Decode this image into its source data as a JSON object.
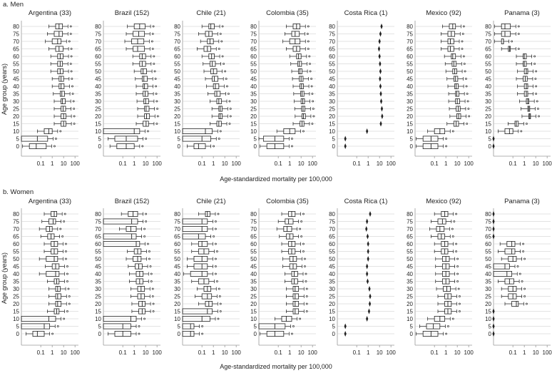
{
  "figure": {
    "xlabel": "Age-standardized mortality per 100,000",
    "ylabel": "Age group (years)"
  },
  "chart_data": {
    "type": "boxplot",
    "x_scale": "log",
    "x_ticks": [
      "0.1",
      "1",
      "10",
      "100"
    ],
    "y_categories": [
      "80",
      "75",
      "70",
      "65",
      "60",
      "55",
      "50",
      "45",
      "40",
      "35",
      "30",
      "25",
      "20",
      "15",
      "10",
      "5",
      "0"
    ],
    "countries": [
      "Argentina (33)",
      "Brazil (152)",
      "Chile (21)",
      "Colombia (35)",
      "Costa Rica (1)",
      "Mexico (92)",
      "Panama (3)"
    ],
    "grid": true,
    "colors": {
      "box_stroke": "#222222",
      "grid": "#c8c8c8",
      "panel_frame": "#9a9a9a"
    },
    "panels": [
      {
        "title": "a. Men",
        "country_series": [
          {
            "name": "Argentina (33)",
            "median": [
              4,
              4,
              3,
              4,
              5,
              5,
              5,
              6,
              6,
              7,
              8,
              9,
              10,
              10,
              0.5,
              0.05,
              0.04
            ],
            "q1": [
              2,
              1.5,
              1,
              2,
              3,
              3,
              3,
              4,
              4,
              5,
              6,
              6,
              6,
              6,
              0.2,
              0.002,
              0.01
            ],
            "q3": [
              8,
              8,
              6,
              9,
              9,
              8,
              9,
              10,
              11,
              12,
              14,
              15,
              16,
              16,
              1,
              0.4,
              0.3
            ]
          },
          {
            "name": "Brazil (152)",
            "median": [
              3,
              2.5,
              2,
              2,
              5,
              5,
              6,
              7,
              8,
              9,
              10,
              11,
              12,
              11,
              1,
              0.2,
              0.2
            ],
            "q1": [
              1,
              0.8,
              0.6,
              0.8,
              3,
              3,
              4,
              5,
              6,
              6,
              7,
              8,
              8,
              6,
              0.002,
              0.02,
              0.03
            ],
            "q3": [
              9,
              8,
              7,
              8,
              10,
              10,
              12,
              14,
              15,
              16,
              18,
              20,
              22,
              18,
              3,
              2,
              1
            ]
          },
          {
            "name": "Chile (21)",
            "median": [
              0.6,
              0.4,
              0.5,
              0.3,
              0.7,
              0.8,
              1,
              1.2,
              1.5,
              2,
              3,
              4,
              4,
              3,
              0.2,
              0.1,
              0.05
            ],
            "q1": [
              0.4,
              0.2,
              0.3,
              0.15,
              0.4,
              0.5,
              0.6,
              0.8,
              1,
              1.3,
              2,
              3,
              3,
              2,
              0.002,
              0.002,
              0.02
            ],
            "q3": [
              1.2,
              0.8,
              1,
              0.6,
              1.2,
              1.5,
              2,
              2.5,
              3,
              4,
              5,
              6,
              6,
              5,
              0.8,
              0.6,
              0.2
            ]
          },
          {
            "name": "Colombia (35)",
            "median": [
              4,
              3,
              3,
              4,
              6,
              7,
              8,
              10,
              11,
              12,
              14,
              15,
              16,
              12,
              1,
              0.05,
              0.05
            ],
            "q1": [
              2,
              1.5,
              1,
              2,
              4,
              5,
              6,
              7,
              8,
              9,
              10,
              11,
              12,
              8,
              0.3,
              0.005,
              0.01
            ],
            "q3": [
              8,
              7,
              8,
              8,
              10,
              11,
              12,
              15,
              16,
              18,
              20,
              22,
              24,
              18,
              3,
              0.3,
              0.3
            ]
          },
          {
            "name": "Costa Rica (1)",
            "median": [
              15,
              12,
              10,
              9,
              10,
              11,
              12,
              11,
              12,
              13,
              14,
              16,
              17,
              13,
              0.8,
              0.01,
              0.01
            ],
            "q1": [
              15,
              12,
              10,
              9,
              10,
              11,
              12,
              11,
              12,
              13,
              14,
              16,
              17,
              13,
              0.8,
              0.01,
              0.01
            ],
            "q3": [
              15,
              12,
              10,
              9,
              10,
              11,
              12,
              11,
              12,
              13,
              14,
              16,
              17,
              13,
              0.8,
              0.01,
              0.01
            ]
          },
          {
            "name": "Mexico (92)",
            "median": [
              4,
              3,
              2.5,
              2.5,
              4,
              5,
              6,
              7,
              8,
              9,
              10,
              12,
              13,
              8,
              0.3,
              0.05,
              0.05
            ],
            "q1": [
              2,
              1.5,
              1.5,
              1.5,
              3,
              3.5,
              4,
              5,
              6,
              7,
              7,
              8,
              9,
              5,
              0.1,
              0.01,
              0.01
            ],
            "q3": [
              7,
              6,
              5,
              5,
              7,
              8,
              9,
              11,
              12,
              14,
              16,
              18,
              20,
              13,
              0.8,
              0.2,
              0.2
            ]
          },
          {
            "name": "Panama (3)",
            "median": [
              0.02,
              0.02,
              0.015,
              0.05,
              1,
              1,
              1.5,
              1.2,
              1.5,
              1.5,
              2,
              2.5,
              3,
              0.2,
              0.05,
              0.002,
              0.002
            ],
            "q1": [
              0.01,
              0.01,
              0.01,
              0.04,
              0.8,
              0.8,
              1,
              0.8,
              1,
              1,
              1.5,
              2,
              2.5,
              0.15,
              0.02,
              0.002,
              0.002
            ],
            "q3": [
              0.06,
              0.06,
              0.015,
              0.06,
              1.5,
              1.5,
              2,
              1.8,
              2,
              2,
              2.5,
              3,
              3.5,
              0.3,
              0.1,
              0.002,
              0.002
            ]
          }
        ]
      },
      {
        "title": "b. Women",
        "country_series": [
          {
            "name": "Argentina (33)",
            "median": [
              1.5,
              1.2,
              0.6,
              0.8,
              1.5,
              1.5,
              1.5,
              2,
              2,
              2.5,
              3,
              3,
              3,
              2.5,
              0.5,
              0.2,
              0.05
            ],
            "q1": [
              0.8,
              0.5,
              0.3,
              0.4,
              0.8,
              0.8,
              0.3,
              1,
              0.3,
              1.5,
              2,
              2,
              2,
              1.5,
              0.002,
              0.002,
              0.02
            ],
            "q3": [
              2.5,
              2,
              1,
              1.5,
              3,
              3,
              3,
              4,
              4,
              4,
              5,
              6,
              6,
              4,
              2,
              0.6,
              0.2
            ]
          },
          {
            "name": "Brazil (152)",
            "median": [
              0.8,
              0.6,
              0.5,
              0.6,
              1.5,
              2,
              2,
              2.5,
              3,
              3,
              4,
              4,
              5,
              5,
              0.5,
              0.1,
              0.1
            ],
            "q1": [
              0.3,
              0.002,
              0.2,
              0.002,
              0.002,
              1,
              0.8,
              1.2,
              1.5,
              1.5,
              2,
              2,
              2.5,
              2.5,
              0.002,
              0.002,
              0.02
            ],
            "q3": [
              2,
              2,
              1.5,
              1.5,
              3,
              4,
              4,
              5,
              6,
              6,
              8,
              8,
              9,
              9,
              1.5,
              0.5,
              0.5
            ]
          },
          {
            "name": "Chile (21)",
            "median": [
              0.3,
              0.1,
              0.1,
              0.05,
              0.1,
              0.15,
              0.1,
              0.1,
              0.1,
              0.15,
              0.3,
              0.3,
              0.4,
              0.3,
              0.1,
              0.01,
              0.01
            ],
            "q1": [
              0.2,
              0.002,
              0.002,
              0.002,
              0.05,
              0.05,
              0.02,
              0.02,
              0.01,
              0.05,
              0.15,
              0.1,
              0.2,
              0.002,
              0.002,
              0.002,
              0.002
            ],
            "q3": [
              0.5,
              0.3,
              0.3,
              0.2,
              0.3,
              0.4,
              0.3,
              0.3,
              0.3,
              0.4,
              0.6,
              0.7,
              0.8,
              0.8,
              0.5,
              0.02,
              0.02
            ]
          },
          {
            "name": "Colombia (35)",
            "median": [
              1.5,
              0.8,
              0.6,
              1,
              1.5,
              1.5,
              2,
              2,
              2.5,
              2.5,
              3,
              3,
              3,
              3,
              0.5,
              0.05,
              0.05
            ],
            "q1": [
              0.8,
              0.4,
              0.3,
              0.5,
              0.8,
              0.8,
              1,
              1,
              1.5,
              1.5,
              2,
              2,
              2,
              2,
              0.2,
              0.002,
              0.01
            ],
            "q3": [
              3,
              2,
              1.5,
              2,
              3,
              3,
              4,
              4,
              5,
              5,
              6,
              6,
              6,
              6,
              1.5,
              0.4,
              0.3
            ]
          },
          {
            "name": "Costa Rica (1)",
            "median": [
              1.5,
              0.8,
              0.7,
              0.9,
              1,
              1,
              1,
              0.8,
              0.8,
              0.9,
              1.3,
              1.5,
              1.4,
              1.2,
              0.8,
              0.01,
              0.01
            ],
            "q1": [
              1.5,
              0.8,
              0.7,
              0.9,
              1,
              1,
              1,
              0.8,
              0.8,
              0.9,
              1.3,
              1.5,
              1.4,
              1.2,
              0.8,
              0.01,
              0.01
            ],
            "q3": [
              1.5,
              0.8,
              0.7,
              0.9,
              1,
              1,
              1,
              0.8,
              0.8,
              0.9,
              1.3,
              1.5,
              1.4,
              1.2,
              0.8,
              0.01,
              0.01
            ]
          },
          {
            "name": "Mexico (92)",
            "median": [
              0.8,
              0.5,
              0.3,
              0.4,
              0.8,
              0.8,
              1,
              1,
              1,
              1,
              1.2,
              1.5,
              1.5,
              1.5,
              0.3,
              0.08,
              0.05
            ],
            "q1": [
              0.4,
              0.2,
              0.15,
              0.2,
              0.4,
              0.4,
              0.5,
              0.5,
              0.5,
              0.5,
              0.6,
              0.8,
              0.8,
              0.8,
              0.1,
              0.02,
              0.01
            ],
            "q3": [
              1.5,
              1,
              0.7,
              0.8,
              1.5,
              1.5,
              2,
              2,
              2,
              2,
              2.5,
              3,
              3,
              3,
              0.8,
              0.3,
              0.2
            ]
          },
          {
            "name": "Panama (3)",
            "median": [
              0.002,
              0.002,
              0.002,
              0.002,
              0.08,
              0.08,
              0.1,
              0.02,
              0.03,
              0.05,
              0.1,
              0.1,
              0.2,
              0.002,
              0.002,
              0.002,
              0.002
            ],
            "q1": [
              0.002,
              0.002,
              0.002,
              0.002,
              0.03,
              0.02,
              0.04,
              0.002,
              0.002,
              0.02,
              0.04,
              0.04,
              0.08,
              0.002,
              0.002,
              0.002,
              0.002
            ],
            "q3": [
              0.002,
              0.002,
              0.002,
              0.002,
              0.15,
              0.15,
              0.2,
              0.05,
              0.08,
              0.12,
              0.2,
              0.2,
              0.3,
              0.002,
              0.002,
              0.002,
              0.002
            ]
          }
        ]
      }
    ]
  }
}
